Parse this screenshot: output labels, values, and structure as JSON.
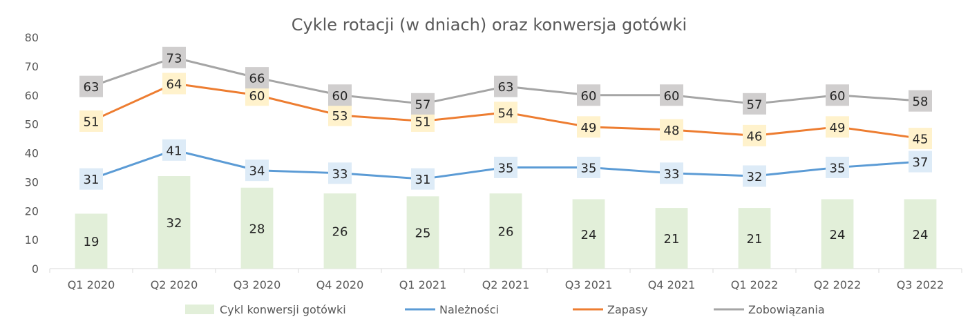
{
  "chart_data": {
    "type": "bar",
    "title": "Cykle rotacji (w dniach) oraz konwersja gotówki",
    "categories": [
      "Q1 2020",
      "Q2 2020",
      "Q3 2020",
      "Q4 2020",
      "Q1 2021",
      "Q2 2021",
      "Q3 2021",
      "Q4 2021",
      "Q1 2022",
      "Q2 2022",
      "Q3 2022"
    ],
    "ylim": [
      0,
      80
    ],
    "yticks": [
      0,
      10,
      20,
      30,
      40,
      50,
      60,
      70,
      80
    ],
    "grid": false,
    "legend": "bottom",
    "series": [
      {
        "name": "Cykl konwersji gotówki",
        "kind": "bar",
        "color": "#e2efd9",
        "label_bg": "",
        "values": [
          19,
          32,
          28,
          26,
          25,
          26,
          24,
          21,
          21,
          24,
          24
        ]
      },
      {
        "name": "Należności",
        "kind": "line",
        "color": "#5b9bd5",
        "label_bg": "#ddebf7",
        "values": [
          31,
          41,
          34,
          33,
          31,
          35,
          35,
          33,
          32,
          35,
          37
        ]
      },
      {
        "name": "Zapasy",
        "kind": "line",
        "color": "#ed7d31",
        "label_bg": "#fff2cc",
        "values": [
          51,
          64,
          60,
          53,
          51,
          54,
          49,
          48,
          46,
          49,
          45
        ]
      },
      {
        "name": "Zobowiązania",
        "kind": "line",
        "color": "#a5a5a5",
        "label_bg": "#d0cece",
        "values": [
          63,
          73,
          66,
          60,
          57,
          63,
          60,
          60,
          57,
          60,
          58
        ]
      }
    ]
  }
}
